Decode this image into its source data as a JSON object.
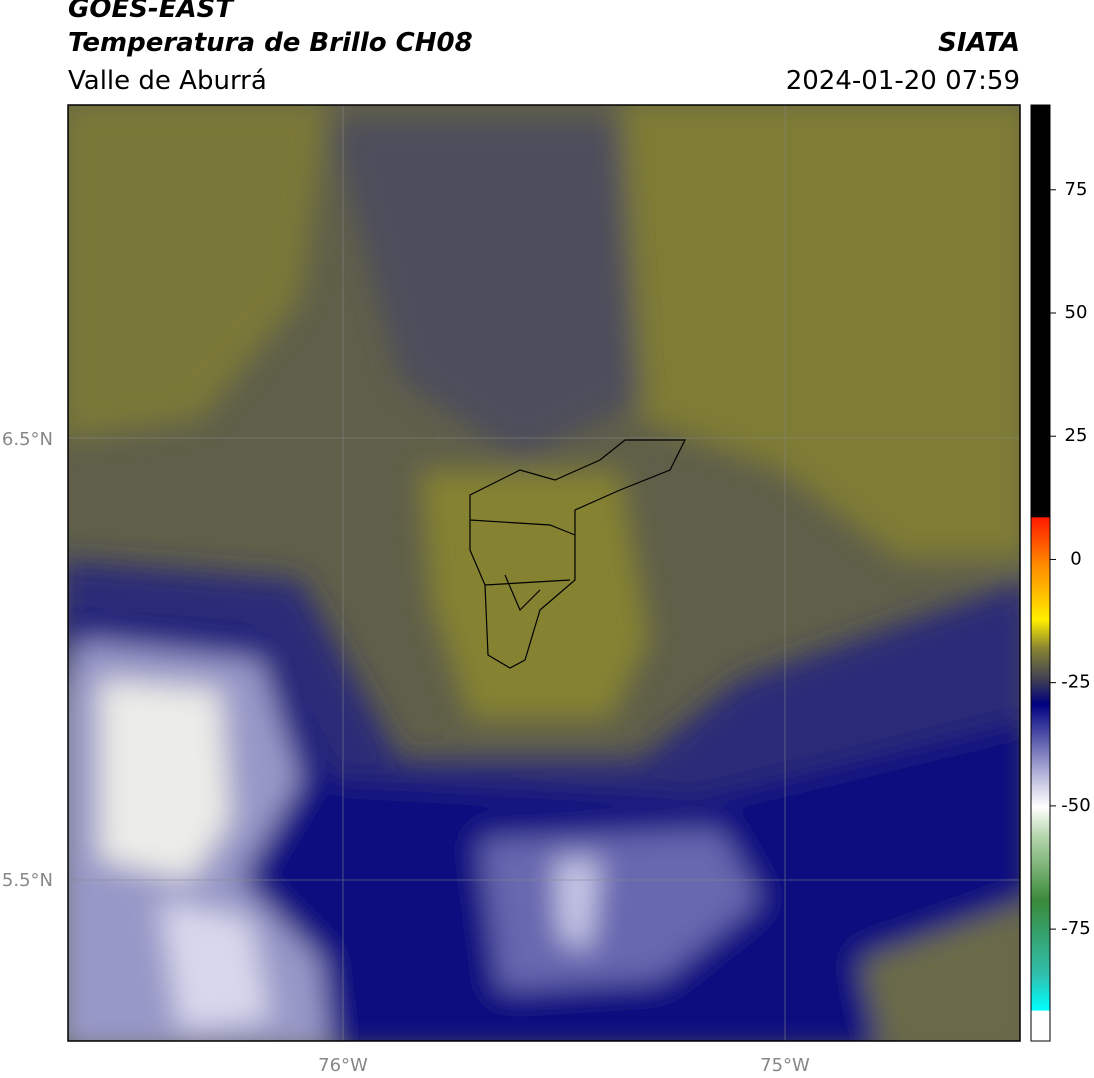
{
  "header": {
    "title": "GOES-EAST",
    "subtitle": "Temperatura de Brillo CH08",
    "region": "Valle de Aburrá",
    "source": "SIATA",
    "timestamp": "2024-01-20 07:59"
  },
  "map": {
    "lat_labels": [
      "6.5°N",
      "5.5°N"
    ],
    "lon_labels": [
      "76°W",
      "75°W"
    ]
  },
  "colorbar": {
    "lim": [
      -97.7,
      92.2
    ],
    "ticks": [
      75,
      50,
      25,
      0,
      -25,
      -50,
      -75
    ]
  }
}
